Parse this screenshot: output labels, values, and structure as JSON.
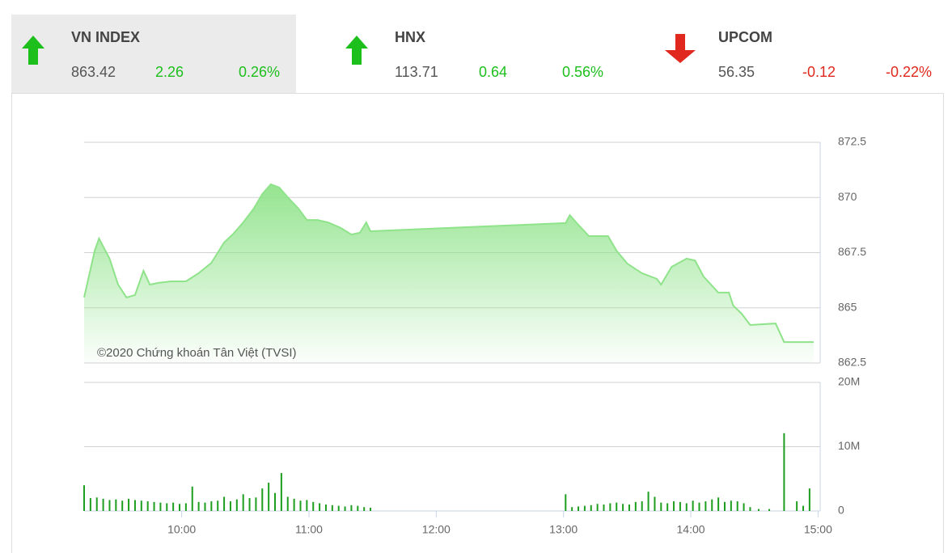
{
  "indices": [
    {
      "name": "VN INDEX",
      "value": "863.42",
      "change": "2.26",
      "change_pct": "0.26%",
      "direction": "up",
      "color": "#1dbf1d"
    },
    {
      "name": "HNX",
      "value": "113.71",
      "change": "0.64",
      "change_pct": "0.56%",
      "direction": "up",
      "color": "#1dbf1d"
    },
    {
      "name": "UPCOM",
      "value": "56.35",
      "change": "-0.12",
      "change_pct": "-0.22%",
      "direction": "down",
      "color": "#e0281e"
    }
  ],
  "chart_data": {
    "type": "line",
    "color": "#8fe38a",
    "annotation": "©2020 Chứng khoán Tân Việt (TVSI)",
    "xlim": [
      554,
      901
    ],
    "xticks": [
      {
        "value": 600,
        "label": "10:00"
      },
      {
        "value": 660,
        "label": "11:00"
      },
      {
        "value": 720,
        "label": "12:00"
      },
      {
        "value": 780,
        "label": "13:00"
      },
      {
        "value": 840,
        "label": "14:00"
      },
      {
        "value": 900,
        "label": "15:00"
      }
    ],
    "ylim": [
      862.5,
      872.5
    ],
    "yticks": [
      872.5,
      870,
      867.5,
      865,
      862.5
    ],
    "grid": true,
    "x": [
      554,
      559,
      561,
      566,
      570,
      574,
      578,
      582,
      585,
      589,
      595,
      602,
      608,
      614,
      620,
      624,
      629,
      634,
      638,
      642,
      646,
      650,
      655,
      659,
      664,
      669,
      675,
      680,
      684,
      687,
      689,
      781,
      783,
      787,
      792,
      796,
      801,
      805,
      810,
      817,
      824,
      826,
      831,
      838,
      842,
      846,
      853,
      858,
      860,
      864,
      868,
      880,
      884,
      898
    ],
    "values": [
      865.47,
      867.59,
      868.14,
      867.23,
      866.05,
      865.47,
      865.58,
      866.68,
      866.05,
      866.13,
      866.2,
      866.2,
      866.57,
      867.04,
      867.96,
      868.32,
      868.87,
      869.5,
      870.16,
      870.6,
      870.45,
      870.01,
      869.5,
      868.98,
      868.98,
      868.87,
      868.62,
      868.32,
      868.4,
      868.87,
      868.47,
      868.84,
      869.2,
      868.76,
      868.25,
      868.25,
      868.25,
      867.59,
      867.01,
      866.57,
      866.31,
      866.05,
      866.86,
      867.23,
      867.15,
      866.42,
      865.69,
      865.69,
      865.1,
      864.73,
      864.22,
      864.29,
      863.45,
      863.45
    ],
    "volume": {
      "type": "bar",
      "color": "#1e9e1e",
      "ylim": [
        0,
        20000000
      ],
      "yticks": [
        0,
        {
          "value": 10000000,
          "label": "10M"
        },
        {
          "value": 20000000,
          "label": "20M"
        }
      ],
      "x": [
        554,
        557,
        560,
        563,
        566,
        569,
        572,
        575,
        578,
        581,
        584,
        587,
        590,
        593,
        596,
        599,
        602,
        605,
        608,
        611,
        614,
        617,
        620,
        623,
        626,
        629,
        632,
        635,
        638,
        641,
        644,
        647,
        650,
        653,
        656,
        659,
        662,
        665,
        668,
        671,
        674,
        677,
        680,
        683,
        686,
        689,
        781,
        784,
        787,
        790,
        793,
        796,
        799,
        802,
        805,
        808,
        811,
        814,
        817,
        820,
        823,
        826,
        829,
        832,
        835,
        838,
        841,
        844,
        847,
        850,
        853,
        856,
        859,
        862,
        865,
        868,
        872,
        877,
        884,
        890,
        893,
        896
      ],
      "values": [
        4000000,
        2000000,
        2100000,
        1900000,
        1700000,
        1800000,
        1600000,
        1900000,
        1700000,
        1600000,
        1500000,
        1400000,
        1300000,
        1200000,
        1300000,
        1100000,
        1200000,
        3800000,
        1400000,
        1300000,
        1500000,
        1600000,
        2200000,
        1500000,
        1800000,
        2600000,
        2000000,
        2100000,
        3500000,
        4400000,
        2800000,
        5900000,
        2200000,
        1900000,
        1600000,
        1700000,
        1400000,
        1200000,
        1000000,
        900000,
        800000,
        700000,
        900000,
        800000,
        600000,
        500000,
        2600000,
        600000,
        700000,
        800000,
        900000,
        1100000,
        1000000,
        1200000,
        1300000,
        1100000,
        1000000,
        1400000,
        1500000,
        3000000,
        2200000,
        1300000,
        1200000,
        1500000,
        1400000,
        1200000,
        1600000,
        1300000,
        1500000,
        1800000,
        2100000,
        1400000,
        1600000,
        1500000,
        1200000,
        600000,
        300000,
        300000,
        12100000,
        1500000,
        800000,
        3500000
      ]
    }
  }
}
